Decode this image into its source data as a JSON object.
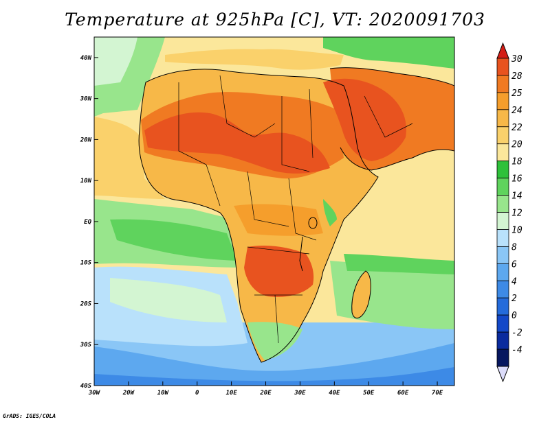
{
  "title": "Temperature at 925hPa [C], VT: 2020091703",
  "footer": "GrADS: IGES/COLA",
  "map": {
    "lon_range": [
      -30,
      75
    ],
    "lat_range": [
      -40,
      45
    ],
    "x_ticks": [
      {
        "lon": -30,
        "label": "30W"
      },
      {
        "lon": -20,
        "label": "20W"
      },
      {
        "lon": -10,
        "label": "10W"
      },
      {
        "lon": 0,
        "label": "0"
      },
      {
        "lon": 10,
        "label": "10E"
      },
      {
        "lon": 20,
        "label": "20E"
      },
      {
        "lon": 30,
        "label": "30E"
      },
      {
        "lon": 40,
        "label": "40E"
      },
      {
        "lon": 50,
        "label": "50E"
      },
      {
        "lon": 60,
        "label": "60E"
      },
      {
        "lon": 70,
        "label": "70E"
      }
    ],
    "y_ticks": [
      {
        "lat": 40,
        "label": "40N"
      },
      {
        "lat": 30,
        "label": "30N"
      },
      {
        "lat": 20,
        "label": "20N"
      },
      {
        "lat": 10,
        "label": "10N"
      },
      {
        "lat": 0,
        "label": "EQ"
      },
      {
        "lat": -10,
        "label": "10S"
      },
      {
        "lat": -20,
        "label": "20S"
      },
      {
        "lat": -30,
        "label": "30S"
      },
      {
        "lat": -40,
        "label": "40S"
      }
    ]
  },
  "colorbar": {
    "levels": [
      {
        "label": "30",
        "color": "#e8531f"
      },
      {
        "label": "28",
        "color": "#f07a22"
      },
      {
        "label": "25",
        "color": "#f59e2c"
      },
      {
        "label": "24",
        "color": "#f7b848"
      },
      {
        "label": "22",
        "color": "#fad16b"
      },
      {
        "label": "20",
        "color": "#fbe79b"
      },
      {
        "label": "18",
        "color": "#2ec13a"
      },
      {
        "label": "16",
        "color": "#5fd35d"
      },
      {
        "label": "14",
        "color": "#98e58c"
      },
      {
        "label": "12",
        "color": "#d3f5d2"
      },
      {
        "label": "10",
        "color": "#b9e1fb"
      },
      {
        "label": "8",
        "color": "#8ac6f6"
      },
      {
        "label": "6",
        "color": "#5da8ef"
      },
      {
        "label": "4",
        "color": "#3d8ae6"
      },
      {
        "label": "2",
        "color": "#246bdb"
      },
      {
        "label": "0",
        "color": "#1348c8"
      },
      {
        "label": "-2",
        "color": "#0a2b9e"
      },
      {
        "label": "-4",
        "color": "#06175f"
      }
    ],
    "top_color": "#d31d15",
    "bottom_color": "#dcdcfa"
  }
}
